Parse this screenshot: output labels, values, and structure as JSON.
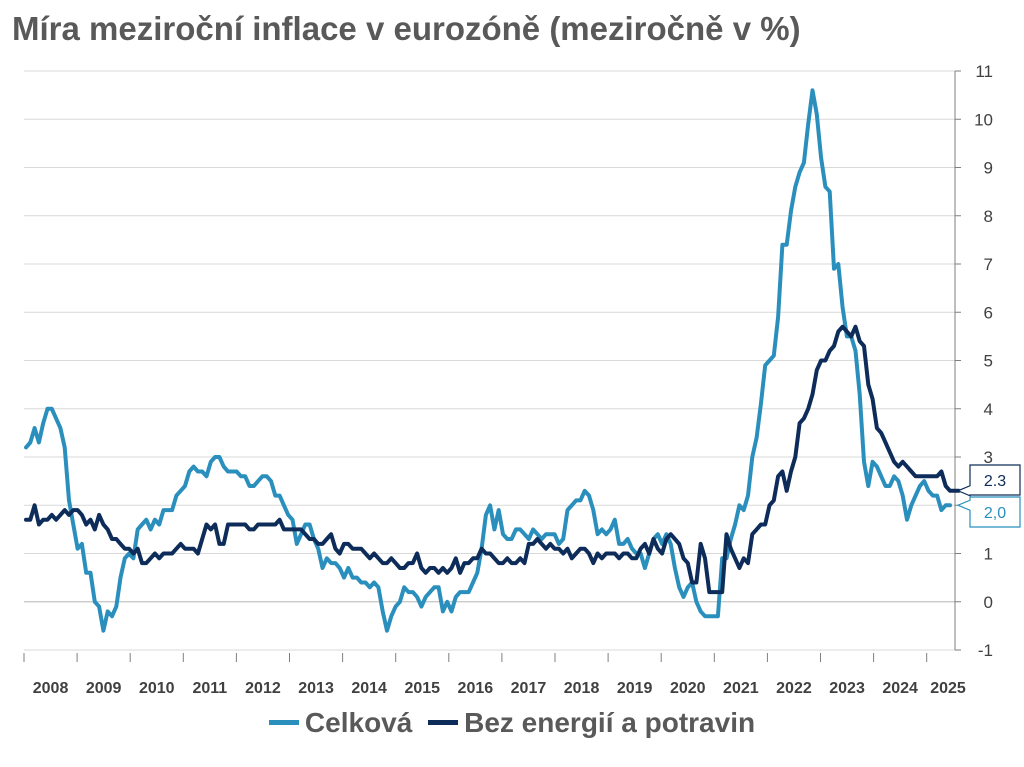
{
  "title": "Míra meziroční inflace v eurozóně (meziročně v %)",
  "chart_data": {
    "type": "line",
    "title": "Míra meziroční inflace v eurozóně (meziročně v %)",
    "ylim": [
      -1,
      11
    ],
    "yticks": [
      -1,
      0,
      1,
      2,
      3,
      4,
      5,
      6,
      7,
      8,
      9,
      10,
      11
    ],
    "y_axis_side": "right",
    "grid": true,
    "x_tick_labels": [
      "2008",
      "2009",
      "2010",
      "2011",
      "2012",
      "2013",
      "2014",
      "2015",
      "2016",
      "2017",
      "2018",
      "2019",
      "2020",
      "2021",
      "2022",
      "2023",
      "2024",
      "2025"
    ],
    "legend_position": "bottom",
    "start": "2008-01",
    "end_labels": [
      {
        "series": "Bez energií a potravin",
        "text": "2.3"
      },
      {
        "series": "Celková",
        "text": "2,0"
      }
    ],
    "series": [
      {
        "name": "Celková",
        "color": "#2a8fbd",
        "values": [
          3.2,
          3.3,
          3.6,
          3.3,
          3.7,
          4.0,
          4.0,
          3.8,
          3.6,
          3.2,
          2.1,
          1.6,
          1.1,
          1.2,
          0.6,
          0.6,
          0.0,
          -0.1,
          -0.6,
          -0.2,
          -0.3,
          -0.1,
          0.5,
          0.9,
          1.0,
          0.9,
          1.5,
          1.6,
          1.7,
          1.5,
          1.7,
          1.6,
          1.9,
          1.9,
          1.9,
          2.2,
          2.3,
          2.4,
          2.7,
          2.8,
          2.7,
          2.7,
          2.6,
          2.9,
          3.0,
          3.0,
          2.8,
          2.7,
          2.7,
          2.7,
          2.6,
          2.6,
          2.4,
          2.4,
          2.5,
          2.6,
          2.6,
          2.5,
          2.2,
          2.2,
          2.0,
          1.8,
          1.7,
          1.2,
          1.4,
          1.6,
          1.6,
          1.3,
          1.1,
          0.7,
          0.9,
          0.8,
          0.8,
          0.7,
          0.5,
          0.7,
          0.5,
          0.5,
          0.4,
          0.4,
          0.3,
          0.4,
          0.3,
          -0.2,
          -0.6,
          -0.3,
          -0.1,
          0.0,
          0.3,
          0.2,
          0.2,
          0.1,
          -0.1,
          0.1,
          0.2,
          0.3,
          0.3,
          -0.2,
          0.0,
          -0.2,
          0.1,
          0.2,
          0.2,
          0.2,
          0.4,
          0.6,
          1.1,
          1.8,
          2.0,
          1.5,
          1.9,
          1.4,
          1.3,
          1.3,
          1.5,
          1.5,
          1.4,
          1.3,
          1.5,
          1.4,
          1.3,
          1.4,
          1.4,
          1.4,
          1.2,
          1.3,
          1.9,
          2.0,
          2.1,
          2.1,
          2.3,
          2.2,
          1.9,
          1.4,
          1.5,
          1.4,
          1.5,
          1.7,
          1.2,
          1.2,
          1.3,
          1.1,
          1.0,
          1.0,
          0.7,
          1.0,
          1.3,
          1.4,
          1.2,
          1.4,
          1.2,
          0.7,
          0.3,
          0.1,
          0.3,
          0.4,
          0.0,
          -0.2,
          -0.3,
          -0.3,
          -0.3,
          -0.3,
          0.9,
          0.9,
          1.3,
          1.6,
          2.0,
          1.9,
          2.2,
          3.0,
          3.4,
          4.1,
          4.9,
          5.0,
          5.1,
          5.9,
          7.4,
          7.4,
          8.1,
          8.6,
          8.9,
          9.1,
          9.9,
          10.6,
          10.1,
          9.2,
          8.6,
          8.5,
          6.9,
          7.0,
          6.1,
          5.5,
          5.5,
          5.2,
          4.3,
          2.9,
          2.4,
          2.9,
          2.8,
          2.6,
          2.4,
          2.4,
          2.6,
          2.5,
          2.2,
          1.7,
          2.0,
          2.2,
          2.4,
          2.5,
          2.3,
          2.2,
          2.2,
          1.9,
          2.0,
          2.0
        ]
      },
      {
        "name": "Bez energií a potravin",
        "color": "#0d2c59",
        "values": [
          1.7,
          1.7,
          2.0,
          1.6,
          1.7,
          1.7,
          1.8,
          1.7,
          1.8,
          1.9,
          1.8,
          1.9,
          1.9,
          1.8,
          1.6,
          1.7,
          1.5,
          1.8,
          1.6,
          1.5,
          1.3,
          1.3,
          1.2,
          1.1,
          1.1,
          1.0,
          1.1,
          0.8,
          0.8,
          0.9,
          1.0,
          0.9,
          1.0,
          1.0,
          1.0,
          1.1,
          1.2,
          1.1,
          1.1,
          1.1,
          1.0,
          1.3,
          1.6,
          1.5,
          1.6,
          1.2,
          1.2,
          1.6,
          1.6,
          1.6,
          1.6,
          1.6,
          1.5,
          1.5,
          1.6,
          1.6,
          1.6,
          1.6,
          1.6,
          1.7,
          1.5,
          1.5,
          1.5,
          1.5,
          1.5,
          1.4,
          1.3,
          1.3,
          1.2,
          1.2,
          1.3,
          1.4,
          1.1,
          1.0,
          1.2,
          1.2,
          1.1,
          1.1,
          1.1,
          1.0,
          0.9,
          1.0,
          0.9,
          0.8,
          0.8,
          0.9,
          0.8,
          0.7,
          0.7,
          0.8,
          0.8,
          1.0,
          0.7,
          0.6,
          0.7,
          0.7,
          0.6,
          0.7,
          0.6,
          0.7,
          0.9,
          0.6,
          0.8,
          0.8,
          0.9,
          0.9,
          1.1,
          1.0,
          1.0,
          0.9,
          0.8,
          0.8,
          0.9,
          0.8,
          0.8,
          0.9,
          0.8,
          1.2,
          1.2,
          1.3,
          1.2,
          1.1,
          1.2,
          1.1,
          1.1,
          1.0,
          1.1,
          0.9,
          1.0,
          1.1,
          1.1,
          1.0,
          0.8,
          1.0,
          0.9,
          1.0,
          1.0,
          1.0,
          0.9,
          1.0,
          1.0,
          0.9,
          0.9,
          1.1,
          1.2,
          1.0,
          1.3,
          1.1,
          1.0,
          1.3,
          1.4,
          1.3,
          1.2,
          0.9,
          0.8,
          0.4,
          0.4,
          1.2,
          0.9,
          0.2,
          0.2,
          0.2,
          0.2,
          1.4,
          1.1,
          0.9,
          0.7,
          0.9,
          0.8,
          1.4,
          1.5,
          1.6,
          1.6,
          2.0,
          2.1,
          2.6,
          2.7,
          2.3,
          2.7,
          3.0,
          3.7,
          3.8,
          4.0,
          4.3,
          4.8,
          5.0,
          5.0,
          5.2,
          5.3,
          5.6,
          5.7,
          5.6,
          5.5,
          5.7,
          5.4,
          5.3,
          4.5,
          4.2,
          3.6,
          3.5,
          3.3,
          3.1,
          2.9,
          2.8,
          2.9,
          2.8,
          2.7,
          2.6,
          2.6,
          2.6,
          2.6,
          2.6,
          2.6,
          2.7,
          2.4,
          2.3,
          2.3,
          2.3
        ]
      }
    ]
  }
}
